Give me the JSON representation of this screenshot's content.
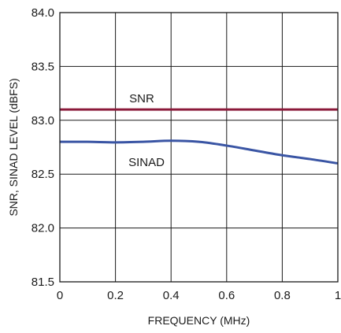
{
  "chart_data": {
    "type": "line",
    "xlabel": "FREQUENCY (MHz)",
    "ylabel": "SNR, SINAD LEVEL (dBFS)",
    "xlim": [
      0,
      1
    ],
    "ylim": [
      81.5,
      84.0
    ],
    "x_ticks": [
      0,
      0.2,
      0.4,
      0.6,
      0.8,
      1
    ],
    "x_tick_labels": [
      "0",
      "0.2",
      "0.4",
      "0.6",
      "0.8",
      "1"
    ],
    "y_ticks": [
      81.5,
      82.0,
      82.5,
      83.0,
      83.5,
      84.0
    ],
    "y_tick_labels": [
      "81.5",
      "82.0",
      "82.5",
      "83.0",
      "83.5",
      "84.0"
    ],
    "grid": true,
    "series": [
      {
        "name": "SNR",
        "color": "#8b1a3a",
        "x": [
          0,
          0.2,
          0.4,
          0.6,
          0.8,
          1.0
        ],
        "y": [
          83.1,
          83.1,
          83.1,
          83.1,
          83.1,
          83.1
        ]
      },
      {
        "name": "SINAD",
        "color": "#3a55a4",
        "x": [
          0,
          0.1,
          0.2,
          0.3,
          0.4,
          0.5,
          0.6,
          0.7,
          0.8,
          0.9,
          1.0
        ],
        "y": [
          82.8,
          82.8,
          82.795,
          82.8,
          82.81,
          82.8,
          82.765,
          82.72,
          82.675,
          82.64,
          82.6
        ]
      }
    ],
    "annotations": [
      {
        "text": "SNR",
        "series": "SNR"
      },
      {
        "text": "SINAD",
        "series": "SINAD"
      }
    ]
  }
}
